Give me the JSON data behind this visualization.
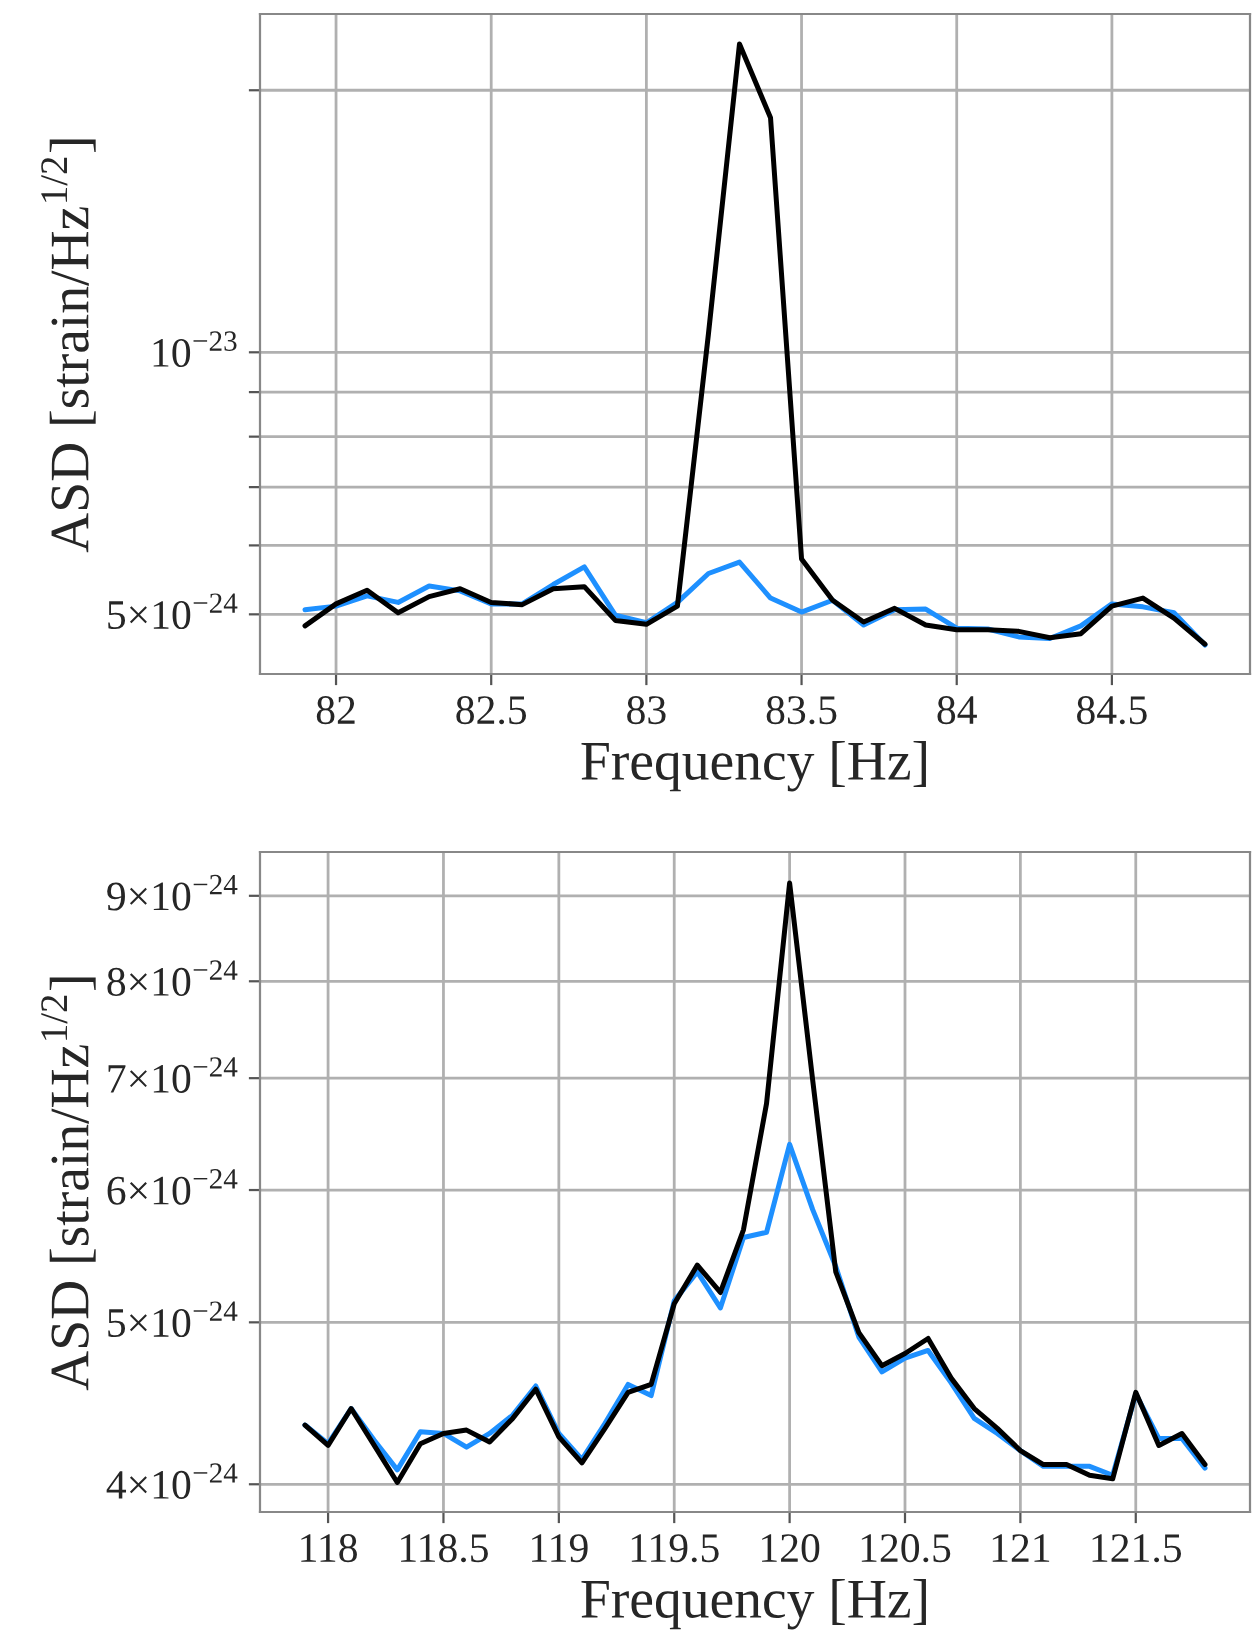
{
  "chart_data": [
    {
      "type": "line",
      "xlabel": "Frequency [Hz]",
      "ylabel": "ASD [strain/Hz$^{1/2}$]",
      "log": "y",
      "grid": true,
      "xlim": [
        81.755,
        84.945
      ],
      "xticks": [
        82,
        82.5,
        83,
        83.5,
        84,
        84.5
      ],
      "ylim": [
        4.27e-24,
        2.447e-23
      ],
      "yticks": [
        {
          "value": 5e-24,
          "label": "5×10$^{−24}$"
        },
        {
          "value": 6e-24,
          "label": null
        },
        {
          "value": 7e-24,
          "label": null
        },
        {
          "value": 8e-24,
          "label": null
        },
        {
          "value": 9e-24,
          "label": null
        },
        {
          "value": 1e-23,
          "label": "10$^{−23}$"
        },
        {
          "value": 2e-23,
          "label": null
        }
      ],
      "x": [
        81.9,
        82.0,
        82.1,
        82.2,
        82.3,
        82.4,
        82.5,
        82.6,
        82.7,
        82.8,
        82.9,
        83.0,
        83.1,
        83.2,
        83.3,
        83.4,
        83.5,
        83.6,
        83.7,
        83.8,
        83.9,
        84.0,
        84.1,
        84.2,
        84.3,
        84.4,
        84.5,
        84.6,
        84.7,
        84.8
      ],
      "series": [
        {
          "color": "#1e90ff",
          "values": [
            5.06e-24,
            5.11e-24,
            5.25e-24,
            5.16e-24,
            5.39e-24,
            5.32e-24,
            5.14e-24,
            5.14e-24,
            5.41e-24,
            5.67e-24,
            4.99e-24,
            4.89e-24,
            5.16e-24,
            5.57e-24,
            5.74e-24,
            5.22e-24,
            5.03e-24,
            5.19e-24,
            4.86e-24,
            5.06e-24,
            5.07e-24,
            4.82e-24,
            4.81e-24,
            4.71e-24,
            4.69e-24,
            4.85e-24,
            5.14e-24,
            5.1e-24,
            5.02e-24,
            4.61e-24
          ]
        },
        {
          "color": "#000000",
          "values": [
            4.85e-24,
            5.14e-24,
            5.33e-24,
            5.02e-24,
            5.24e-24,
            5.35e-24,
            5.16e-24,
            5.13e-24,
            5.35e-24,
            5.38e-24,
            4.92e-24,
            4.87e-24,
            5.11e-24,
            1.05e-23,
            2.26e-23,
            1.86e-23,
            5.79e-24,
            5.19e-24,
            4.9e-24,
            5.08e-24,
            4.86e-24,
            4.8e-24,
            4.8e-24,
            4.78e-24,
            4.7e-24,
            4.75e-24,
            5.11e-24,
            5.22e-24,
            4.95e-24,
            4.62e-24
          ]
        }
      ]
    },
    {
      "type": "line",
      "xlabel": "Frequency [Hz]",
      "ylabel": "ASD [strain/Hz$^{1/2}$]",
      "log": "y",
      "grid": true,
      "xlim": [
        117.705,
        121.995
      ],
      "xticks": [
        118,
        118.5,
        119,
        119.5,
        120,
        120.5,
        121,
        121.5
      ],
      "ylim": [
        3.85e-24,
        9.56e-24
      ],
      "yticks": [
        {
          "value": 4e-24,
          "label": "4×10$^{−24}$"
        },
        {
          "value": 5e-24,
          "label": "5×10$^{−24}$"
        },
        {
          "value": 6e-24,
          "label": "6×10$^{−24}$"
        },
        {
          "value": 7e-24,
          "label": "7×10$^{−24}$"
        },
        {
          "value": 8e-24,
          "label": "8×10$^{−24}$"
        },
        {
          "value": 9e-24,
          "label": "9×10$^{−24}$"
        }
      ],
      "x": [
        117.9,
        118.0,
        118.1,
        118.2,
        118.3,
        118.4,
        118.5,
        118.6,
        118.7,
        118.8,
        118.9,
        119.0,
        119.1,
        119.2,
        119.3,
        119.4,
        119.5,
        119.6,
        119.7,
        119.8,
        119.9,
        120.0,
        120.1,
        120.2,
        120.3,
        120.4,
        120.5,
        120.6,
        120.7,
        120.8,
        120.9,
        121.0,
        121.1,
        121.2,
        121.3,
        121.4,
        121.5,
        121.6,
        121.7,
        121.8
      ],
      "series": [
        {
          "color": "#1e90ff",
          "values": [
            4.34e-24,
            4.23e-24,
            4.44e-24,
            4.25e-24,
            4.08e-24,
            4.3e-24,
            4.29e-24,
            4.21e-24,
            4.29e-24,
            4.4e-24,
            4.58e-24,
            4.29e-24,
            4.14e-24,
            4.35e-24,
            4.59e-24,
            4.52e-24,
            5.15e-24,
            5.36e-24,
            5.1e-24,
            5.62e-24,
            5.66e-24,
            6.39e-24,
            5.84e-24,
            5.4e-24,
            4.9e-24,
            4.67e-24,
            4.76e-24,
            4.81e-24,
            4.6e-24,
            4.38e-24,
            4.29e-24,
            4.19e-24,
            4.1e-24,
            4.1e-24,
            4.1e-24,
            4.05e-24,
            4.53e-24,
            4.26e-24,
            4.26e-24,
            4.09e-24
          ]
        },
        {
          "color": "#000000",
          "values": [
            4.34e-24,
            4.22e-24,
            4.44e-24,
            4.22e-24,
            4.01e-24,
            4.23e-24,
            4.29e-24,
            4.31e-24,
            4.24e-24,
            4.38e-24,
            4.56e-24,
            4.27e-24,
            4.12e-24,
            4.32e-24,
            4.54e-24,
            4.59e-24,
            5.13e-24,
            5.41e-24,
            5.21e-24,
            5.68e-24,
            6.76e-24,
            9.16e-24,
            6.98e-24,
            5.36e-24,
            4.93e-24,
            4.71e-24,
            4.79e-24,
            4.89e-24,
            4.63e-24,
            4.44e-24,
            4.32e-24,
            4.19e-24,
            4.11e-24,
            4.11e-24,
            4.05e-24,
            4.03e-24,
            4.54e-24,
            4.22e-24,
            4.29e-24,
            4.11e-24
          ]
        }
      ]
    }
  ]
}
